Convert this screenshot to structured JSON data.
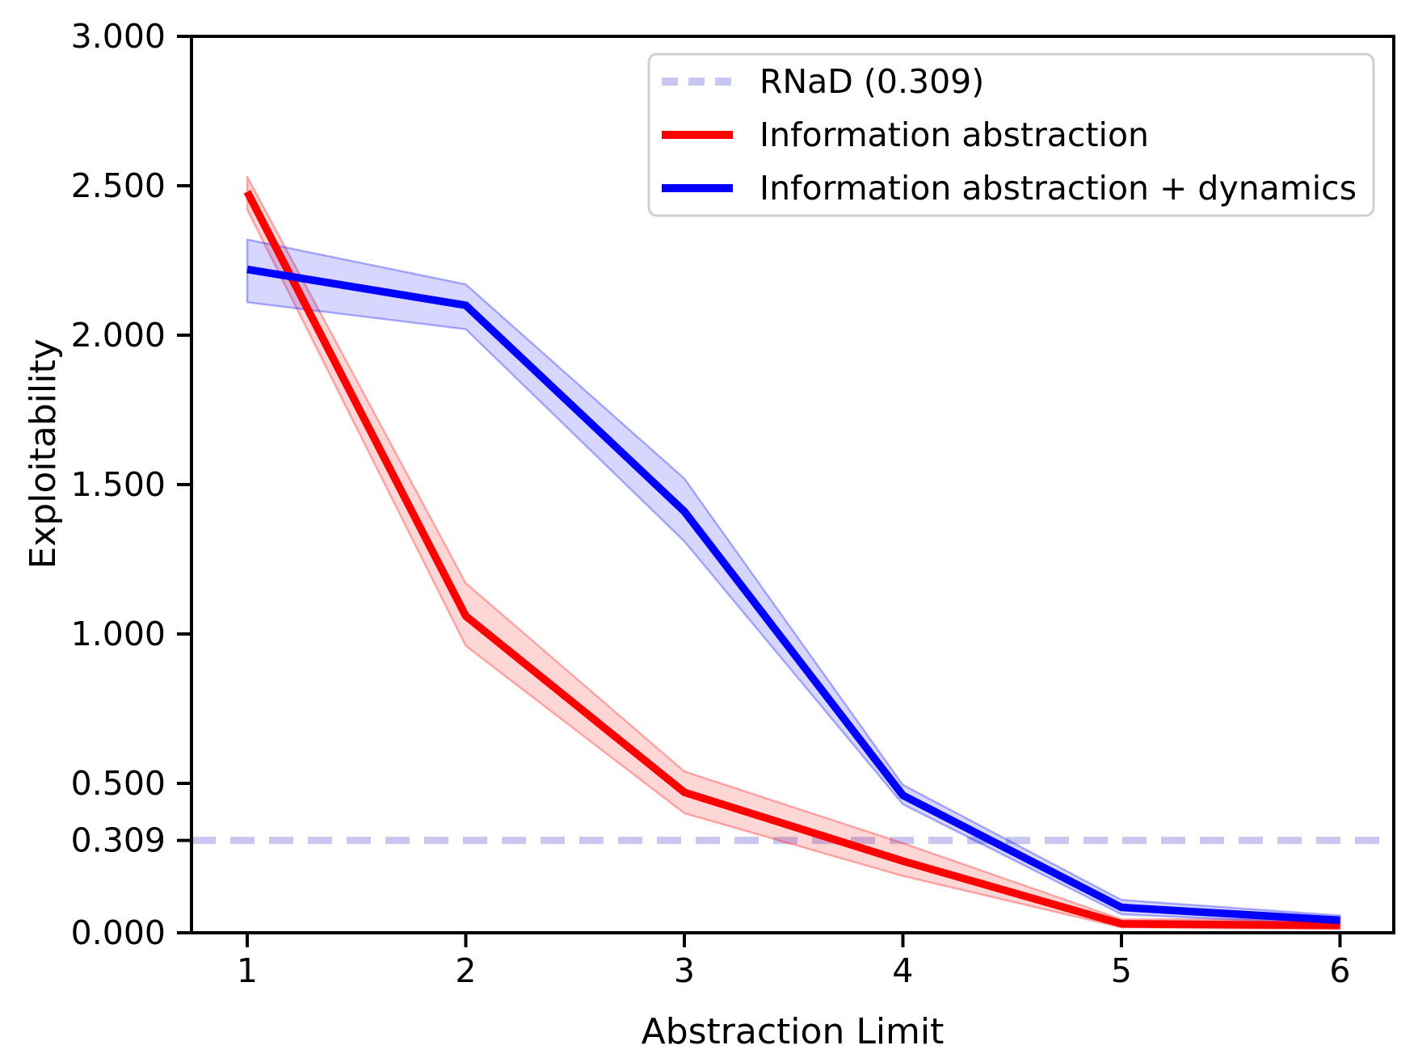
{
  "chart_data": {
    "type": "line",
    "title": "",
    "xlabel": "Abstraction Limit",
    "ylabel": "Exploitability",
    "xlim": [
      0.745,
      6.246
    ],
    "ylim": [
      0.0,
      3.0
    ],
    "grid": false,
    "background": "#ffffff",
    "x": [
      1,
      2,
      3,
      4,
      5,
      6
    ],
    "x_ticks": {
      "values": [
        1,
        2,
        3,
        4,
        5,
        6
      ],
      "labels": [
        "1",
        "2",
        "3",
        "4",
        "5",
        "6"
      ]
    },
    "y_ticks": {
      "values": [
        3.0,
        2.5,
        2.0,
        1.5,
        1.0,
        0.5,
        0.309,
        0.0
      ],
      "labels": [
        "3.000",
        "2.500",
        "2.000",
        "1.500",
        "1.000",
        "0.500",
        "0.309",
        "0.000"
      ]
    },
    "baseline": {
      "label": "RNaD (0.309)",
      "value": 0.309,
      "color": "#c7c7f2",
      "style": "dashed",
      "dash": [
        30,
        18
      ],
      "line_width": 9
    },
    "series": [
      {
        "name": "Information abstraction",
        "color": "#ff0000",
        "band_fill": "rgba(255,0,0,0.16)",
        "band_edge": "rgba(255,0,0,0.30)",
        "values": [
          2.48,
          1.06,
          0.47,
          0.24,
          0.03,
          0.025
        ],
        "band_upper": [
          2.53,
          1.17,
          0.54,
          0.3,
          0.045,
          0.045
        ],
        "band_lower": [
          2.42,
          0.96,
          0.4,
          0.19,
          0.018,
          0.012
        ]
      },
      {
        "name": "Information abstraction + dynamics",
        "color": "#0000ff",
        "band_fill": "rgba(0,0,255,0.16)",
        "band_edge": "rgba(0,0,255,0.30)",
        "values": [
          2.22,
          2.1,
          1.41,
          0.46,
          0.085,
          0.042
        ],
        "band_upper": [
          2.32,
          2.17,
          1.52,
          0.495,
          0.11,
          0.058
        ],
        "band_lower": [
          2.11,
          2.02,
          1.31,
          0.43,
          0.062,
          0.028
        ]
      }
    ],
    "legend": {
      "position": "upper right",
      "entries": [
        {
          "label": "RNaD (0.309)",
          "color": "#c7c7f2",
          "style": "dashed"
        },
        {
          "label": "Information abstraction",
          "color": "#ff0000",
          "style": "solid"
        },
        {
          "label": "Information abstraction + dynamics",
          "color": "#0000ff",
          "style": "solid"
        }
      ]
    },
    "axis_color": "#000000",
    "text_color": "#000000"
  }
}
